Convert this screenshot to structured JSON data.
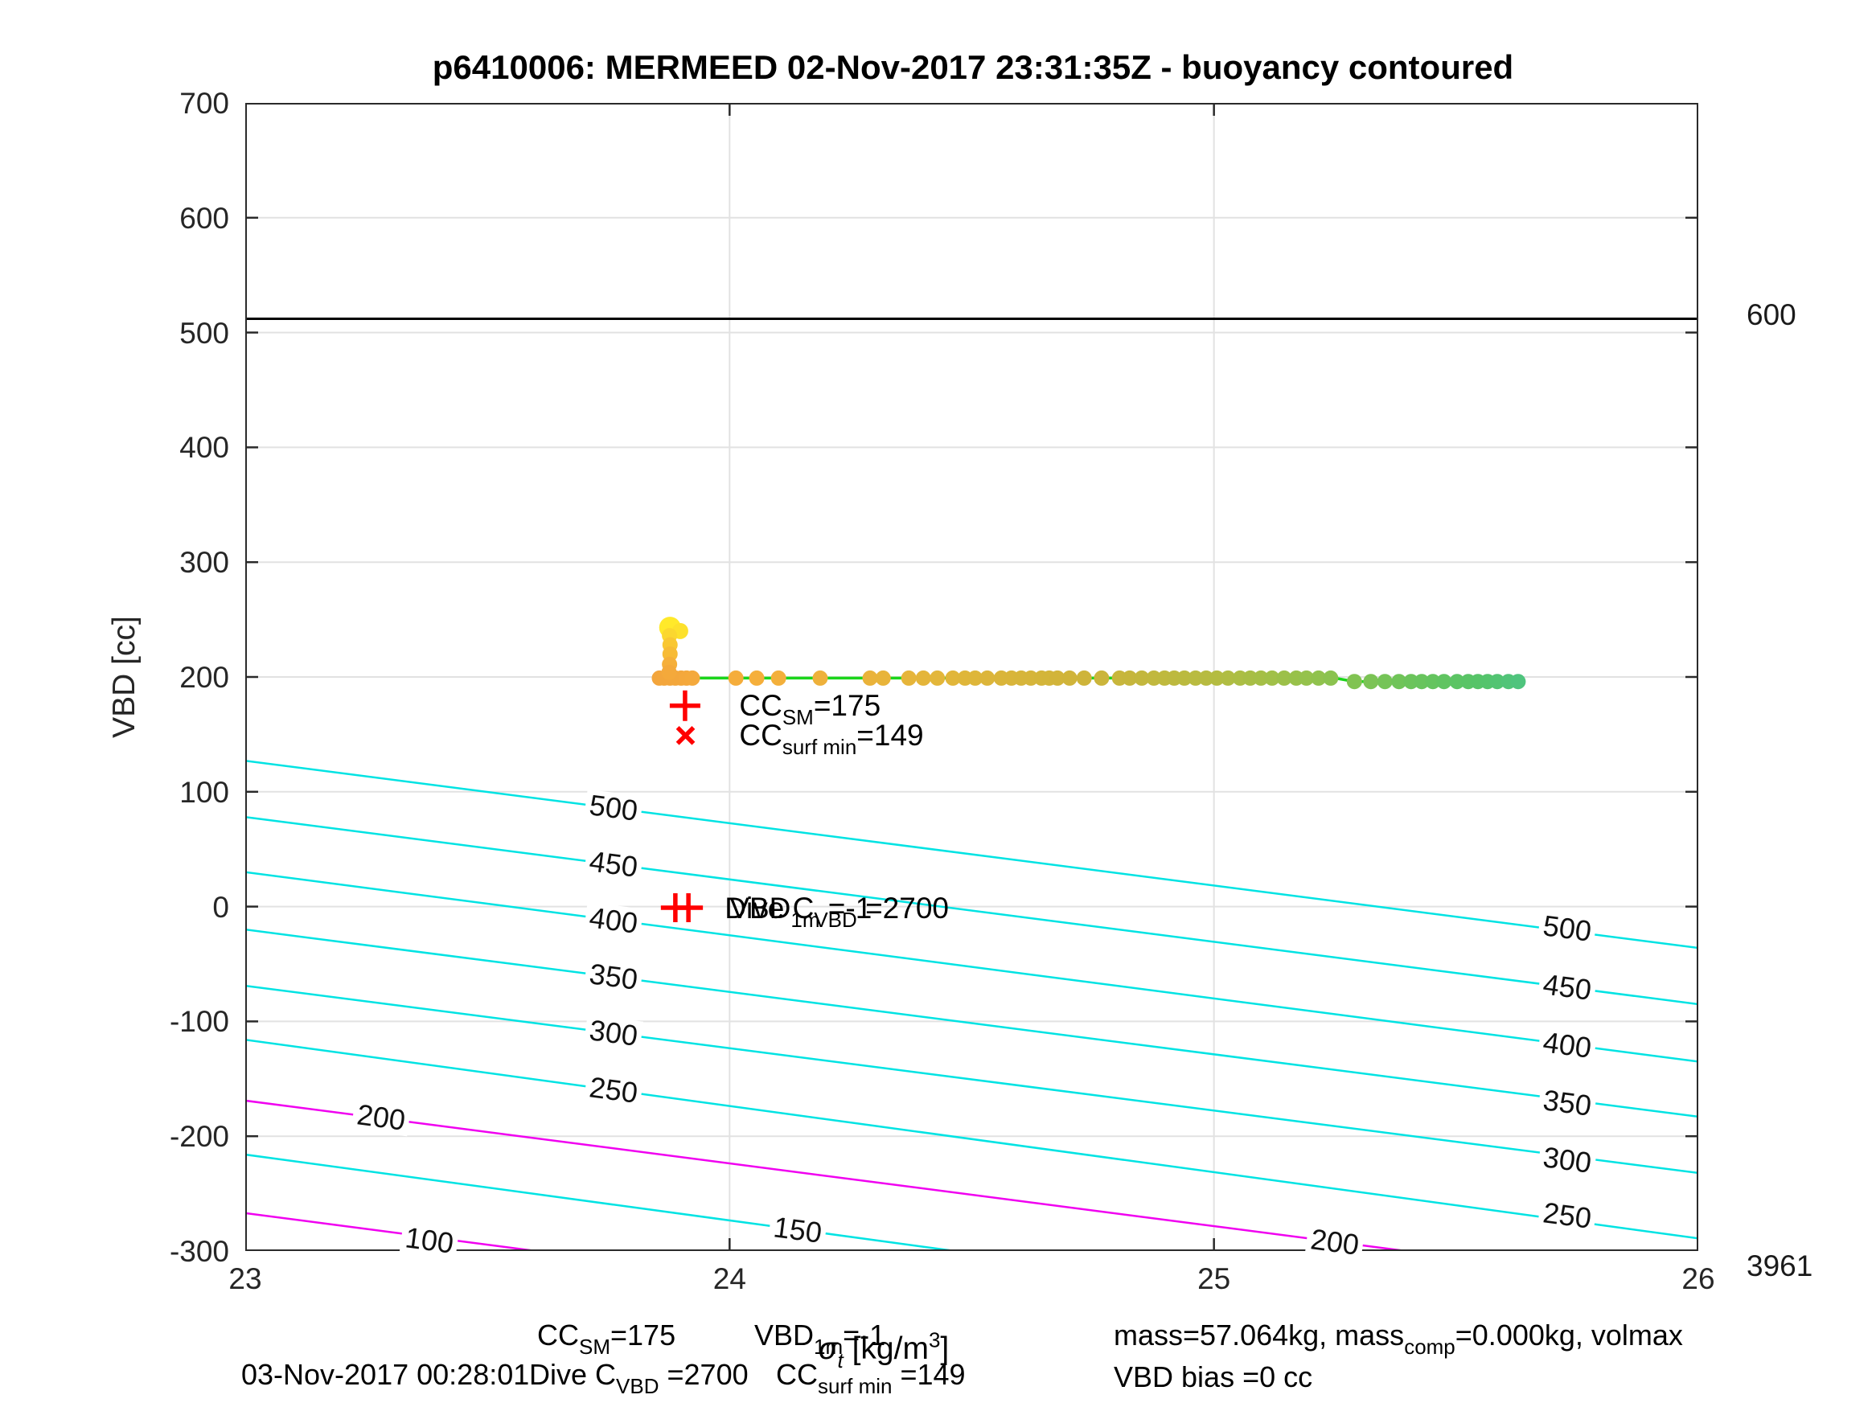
{
  "title": "p6410006: MERMEED 02-Nov-2017 23:31:35Z - buoyancy contoured",
  "y_axis": {
    "label": "VBD [cc]",
    "tick_labels": [
      "700",
      "600",
      "500",
      "400",
      "300",
      "200",
      "100",
      "0",
      "-100",
      "-200",
      "-300"
    ]
  },
  "x_axis": {
    "tick_labels": [
      "23",
      "24",
      "25",
      "26"
    ],
    "label_pre": "σ",
    "label_sub": "t",
    "label_mid": " [kg/m",
    "label_sup": "3",
    "label_post": "]"
  },
  "side_labels": {
    "max_line": "600",
    "bottom_right": "3961"
  },
  "annotations": {
    "cc_sm": {
      "pre": "CC",
      "sub": "SM",
      "post": "=175",
      "sigma": 24.02,
      "vbd": 175
    },
    "cc_surf_min": {
      "pre": "CC",
      "sub": "surf min",
      "post": "=149",
      "sigma": 24.02,
      "vbd": 149
    },
    "vbd_1m": {
      "pre": "VBD",
      "sub": "1m",
      "post": " =-1",
      "sigma": 24.0,
      "vbd": -2
    },
    "dive_c_vbd": {
      "pre": "Dive C",
      "sub": "VBD",
      "post": " =2700",
      "sigma": 23.99,
      "vbd": -2
    }
  },
  "footer": {
    "timestamp": "03-Nov-2017 00:28:01",
    "cc_sm": {
      "pre": "CC",
      "sub": "SM",
      "post": "=175"
    },
    "vbd_1m": {
      "pre": "VBD",
      "sub": "1m",
      "post": "=-1"
    },
    "dive_c_vbd": {
      "pre": "Dive C",
      "sub": "VBD",
      "post": " =2700"
    },
    "cc_surf_min": {
      "pre": "CC",
      "sub": "surf min",
      "post": " =149"
    },
    "mass": {
      "pre": "mass=57.064kg, mass",
      "sub": "comp",
      "post": "=0.000kg, volmax"
    },
    "vbd_bias": "VBD bias =0 cc"
  },
  "chart_data": {
    "type": "scatter",
    "title": "p6410006: MERMEED 02-Nov-2017 23:31:35Z - buoyancy contoured",
    "xlabel": "sigma_t [kg/m^3]",
    "ylabel": "VBD [cc]",
    "xlim": [
      23,
      26
    ],
    "ylim": [
      -300,
      700
    ],
    "xticks": [
      23,
      24,
      25,
      26
    ],
    "yticks": [
      700,
      600,
      500,
      400,
      300,
      200,
      100,
      0,
      -100,
      -200,
      -300
    ],
    "grid": true,
    "grid_color": "#e2e2e2",
    "axis_color": "#2a2a2a",
    "palette": {
      "cyan": "#00e3e3",
      "magenta": "#f000f0",
      "black": "#000000",
      "red": "#ff0000",
      "green": "#1bd61b"
    },
    "hline": {
      "vbd": 512,
      "label": "600"
    },
    "contours": [
      {
        "value": 500,
        "color": "cyan",
        "vbd_at_23": 127,
        "vbd_at_26": -36,
        "labels": [
          [
            23.76,
            86
          ],
          [
            25.73,
            -19
          ]
        ]
      },
      {
        "value": 450,
        "color": "cyan",
        "vbd_at_23": 78,
        "vbd_at_26": -85,
        "labels": [
          [
            23.76,
            37
          ],
          [
            25.73,
            -70
          ]
        ]
      },
      {
        "value": 400,
        "color": "cyan",
        "vbd_at_23": 30,
        "vbd_at_26": -135,
        "labels": [
          [
            23.76,
            -12
          ],
          [
            25.73,
            -121
          ]
        ]
      },
      {
        "value": 350,
        "color": "cyan",
        "vbd_at_23": -20,
        "vbd_at_26": -183,
        "labels": [
          [
            23.76,
            -61
          ],
          [
            25.73,
            -171
          ]
        ]
      },
      {
        "value": 300,
        "color": "cyan",
        "vbd_at_23": -69,
        "vbd_at_26": -232,
        "labels": [
          [
            23.76,
            -110
          ],
          [
            25.73,
            -221
          ]
        ]
      },
      {
        "value": 250,
        "color": "cyan",
        "vbd_at_23": -116,
        "vbd_at_26": -289,
        "labels": [
          [
            23.76,
            -160
          ],
          [
            25.73,
            -269
          ]
        ]
      },
      {
        "value": 200,
        "color": "magenta",
        "vbd_at_23": -169,
        "vbd_at_26": -333,
        "labels": [
          [
            23.28,
            -184
          ],
          [
            25.25,
            -292
          ]
        ]
      },
      {
        "value": 150,
        "color": "cyan",
        "vbd_at_23": -216,
        "vbd_at_26": -388,
        "labels": [
          [
            24.14,
            -282
          ]
        ]
      },
      {
        "value": 100,
        "color": "magenta",
        "vbd_at_23": -267,
        "vbd_at_26": -432,
        "labels": [
          [
            23.38,
            -291
          ]
        ]
      }
    ],
    "track_line": [
      [
        23.877,
        243
      ],
      [
        23.877,
        199
      ],
      [
        25.25,
        199
      ],
      [
        25.29,
        196
      ],
      [
        25.628,
        196
      ]
    ],
    "dive_series": {
      "default_radius": 9.5,
      "points": [
        [
          23.855,
          199
        ],
        [
          23.865,
          199
        ],
        [
          23.877,
          199
        ],
        [
          23.888,
          199
        ],
        [
          23.9,
          199
        ],
        [
          23.911,
          199
        ],
        [
          23.923,
          199
        ],
        [
          24.013,
          199
        ],
        [
          24.056,
          199
        ],
        [
          24.101,
          199
        ],
        [
          24.187,
          199
        ],
        [
          24.29,
          199
        ],
        [
          24.317,
          199
        ],
        [
          24.37,
          199
        ],
        [
          24.4,
          199
        ],
        [
          24.429,
          199
        ],
        [
          24.461,
          199
        ],
        [
          24.486,
          199
        ],
        [
          24.507,
          199
        ],
        [
          24.532,
          199
        ],
        [
          24.561,
          199
        ],
        [
          24.582,
          199
        ],
        [
          24.602,
          199
        ],
        [
          24.622,
          199
        ],
        [
          24.644,
          199
        ],
        [
          24.66,
          199
        ],
        [
          24.677,
          199
        ],
        [
          24.702,
          199
        ],
        [
          24.732,
          199
        ],
        [
          24.768,
          199
        ],
        [
          24.805,
          199
        ],
        [
          24.826,
          199
        ],
        [
          24.851,
          199
        ],
        [
          24.876,
          199
        ],
        [
          24.898,
          199
        ],
        [
          24.918,
          199
        ],
        [
          24.939,
          199
        ],
        [
          24.962,
          199
        ],
        [
          24.984,
          199
        ],
        [
          25.006,
          199
        ],
        [
          25.029,
          199
        ],
        [
          25.054,
          199
        ],
        [
          25.075,
          199
        ],
        [
          25.097,
          199
        ],
        [
          25.12,
          199
        ],
        [
          25.145,
          199
        ],
        [
          25.17,
          199
        ],
        [
          25.191,
          199
        ],
        [
          25.216,
          199
        ],
        [
          25.241,
          199
        ],
        [
          25.29,
          196
        ],
        [
          25.324,
          196
        ],
        [
          25.353,
          196
        ],
        [
          25.382,
          196
        ],
        [
          25.407,
          196
        ],
        [
          25.429,
          196
        ],
        [
          25.452,
          196
        ],
        [
          25.475,
          196
        ],
        [
          25.502,
          196
        ],
        [
          25.525,
          196
        ],
        [
          25.545,
          196
        ],
        [
          25.565,
          196
        ],
        [
          25.585,
          196
        ],
        [
          25.608,
          196
        ],
        [
          25.628,
          196
        ]
      ]
    },
    "surface_series": {
      "points": [
        [
          23.877,
          243,
          13.5
        ],
        [
          23.898,
          240,
          10
        ],
        [
          23.876,
          236,
          9.5
        ],
        [
          23.877,
          228,
          9.5
        ],
        [
          23.877,
          220,
          9.5
        ],
        [
          23.876,
          211,
          9.5
        ],
        [
          23.875,
          204,
          9.5
        ]
      ]
    },
    "colormap_dive": [
      [
        23.85,
        "#f3a53c"
      ],
      [
        24.05,
        "#f5af3b"
      ],
      [
        24.45,
        "#e2b63a"
      ],
      [
        24.75,
        "#cdb43a"
      ],
      [
        25.0,
        "#b5bc41"
      ],
      [
        25.2,
        "#93c24c"
      ],
      [
        25.4,
        "#6cc45a"
      ],
      [
        25.55,
        "#55c468"
      ],
      [
        25.63,
        "#4fc47e"
      ]
    ],
    "colormap_surface": [
      [
        199,
        "#f3a53c"
      ],
      [
        210,
        "#f5ae3a"
      ],
      [
        225,
        "#f8c134"
      ],
      [
        236,
        "#fbd72f"
      ],
      [
        243,
        "#ffe92a"
      ]
    ],
    "markers": [
      {
        "type": "plus",
        "sigma": 23.908,
        "vbd": 175,
        "size": 19,
        "stroke": 5.5
      },
      {
        "type": "cross",
        "sigma": 23.909,
        "vbd": 149,
        "size": 14,
        "stroke": 5.5
      },
      {
        "type": "plus",
        "sigma": 23.888,
        "vbd": -1,
        "size": 18,
        "stroke": 5.5
      },
      {
        "type": "plus",
        "sigma": 23.915,
        "vbd": -1,
        "size": 18,
        "stroke": 5.5
      }
    ]
  }
}
